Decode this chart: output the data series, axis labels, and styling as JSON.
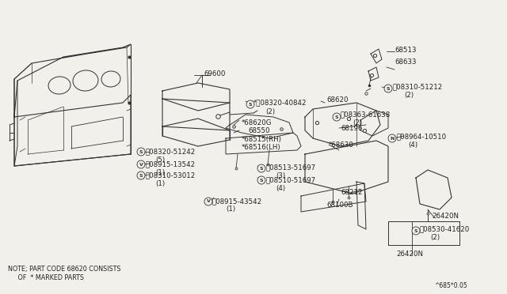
{
  "bg_color": "#f2f0eb",
  "line_color": "#333333",
  "text_color": "#222222",
  "note_line1": "NOTE; PART CODE 68620 CONSISTS",
  "note_line2": "     OF  * MARKED PARTS",
  "watermark": "^685*0.05"
}
